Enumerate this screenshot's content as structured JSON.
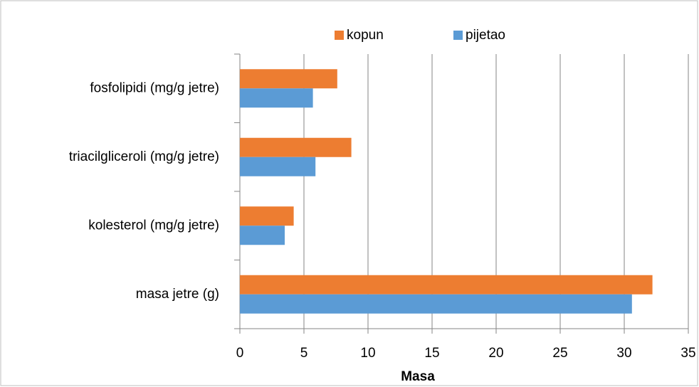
{
  "chart_data": {
    "type": "bar",
    "orientation": "horizontal",
    "x_label": "Masa",
    "categories": [
      "masa jetre (g)",
      "kolesterol (mg/g jetre)",
      "triacilgliceroli (mg/g jetre)",
      "fosfolipidi (mg/g jetre)"
    ],
    "series": [
      {
        "name": "kopun",
        "color": "#ed7d31",
        "values": [
          32.2,
          4.2,
          8.7,
          7.6
        ]
      },
      {
        "name": "pijetao",
        "color": "#5b9bd5",
        "values": [
          30.6,
          3.5,
          5.9,
          5.7
        ]
      }
    ],
    "xlim": [
      0,
      35
    ],
    "xticks": [
      0,
      5,
      10,
      15,
      20,
      25,
      30,
      35
    ],
    "grid": true,
    "legend": "top"
  }
}
